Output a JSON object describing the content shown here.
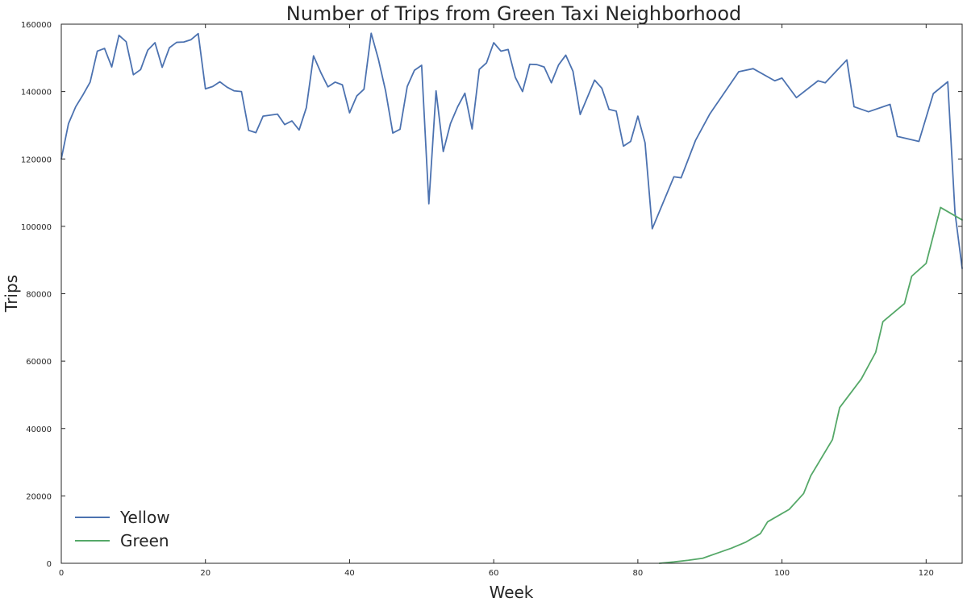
{
  "chart_data": {
    "type": "line",
    "title": "Number of Trips from Green Taxi Neighborhood",
    "xlabel": "Week",
    "ylabel": "Trips",
    "xlim": [
      0,
      125
    ],
    "ylim": [
      0,
      160000
    ],
    "xticks": [
      0,
      20,
      40,
      60,
      80,
      100,
      120
    ],
    "yticks": [
      0,
      20000,
      40000,
      60000,
      80000,
      100000,
      120000,
      140000,
      160000
    ],
    "grid": false,
    "legend_position": "lower-left",
    "series": [
      {
        "name": "Yellow",
        "color": "#4c72b0",
        "points": [
          [
            0,
            120000
          ],
          [
            1,
            130500
          ],
          [
            2,
            135500
          ],
          [
            3,
            139000
          ],
          [
            4,
            142800
          ],
          [
            5,
            152000
          ],
          [
            6,
            152800
          ],
          [
            7,
            147300
          ],
          [
            8,
            156700
          ],
          [
            9,
            154800
          ],
          [
            10,
            145000
          ],
          [
            11,
            146500
          ],
          [
            12,
            152300
          ],
          [
            13,
            154500
          ],
          [
            14,
            147200
          ],
          [
            15,
            153000
          ],
          [
            16,
            154600
          ],
          [
            17,
            154700
          ],
          [
            18,
            155400
          ],
          [
            19,
            157200
          ],
          [
            20,
            140800
          ],
          [
            21,
            141500
          ],
          [
            22,
            142900
          ],
          [
            23,
            141300
          ],
          [
            24,
            140200
          ],
          [
            25,
            140000
          ],
          [
            26,
            128500
          ],
          [
            27,
            127800
          ],
          [
            28,
            132700
          ],
          [
            29,
            133000
          ],
          [
            30,
            133300
          ],
          [
            31,
            130200
          ],
          [
            32,
            131300
          ],
          [
            33,
            128600
          ],
          [
            34,
            135200
          ],
          [
            35,
            150600
          ],
          [
            36,
            145700
          ],
          [
            37,
            141400
          ],
          [
            38,
            142800
          ],
          [
            39,
            142000
          ],
          [
            40,
            133700
          ],
          [
            41,
            138700
          ],
          [
            42,
            140700
          ],
          [
            43,
            157300
          ],
          [
            44,
            149600
          ],
          [
            45,
            140200
          ],
          [
            46,
            127700
          ],
          [
            47,
            128800
          ],
          [
            48,
            141500
          ],
          [
            49,
            146300
          ],
          [
            50,
            147800
          ],
          [
            51,
            106700
          ],
          [
            52,
            140200
          ],
          [
            53,
            122200
          ],
          [
            54,
            130500
          ],
          [
            55,
            135500
          ],
          [
            56,
            139500
          ],
          [
            57,
            128900
          ],
          [
            58,
            146600
          ],
          [
            59,
            148500
          ],
          [
            60,
            154500
          ],
          [
            61,
            152000
          ],
          [
            62,
            152500
          ],
          [
            63,
            144200
          ],
          [
            64,
            140000
          ],
          [
            65,
            148100
          ],
          [
            66,
            148000
          ],
          [
            67,
            147300
          ],
          [
            68,
            142600
          ],
          [
            69,
            147900
          ],
          [
            70,
            150800
          ],
          [
            71,
            146000
          ],
          [
            72,
            133200
          ],
          [
            74,
            143400
          ],
          [
            75,
            141000
          ],
          [
            76,
            134700
          ],
          [
            77,
            134200
          ],
          [
            78,
            123800
          ],
          [
            79,
            125200
          ],
          [
            80,
            132700
          ],
          [
            81,
            124800
          ],
          [
            82,
            99300
          ],
          [
            85,
            114700
          ],
          [
            86,
            114400
          ],
          [
            88,
            125500
          ],
          [
            90,
            133400
          ],
          [
            94,
            145900
          ],
          [
            96,
            146800
          ],
          [
            99,
            143200
          ],
          [
            100,
            144000
          ],
          [
            102,
            138200
          ],
          [
            105,
            143200
          ],
          [
            106,
            142600
          ],
          [
            109,
            149400
          ],
          [
            110,
            135500
          ],
          [
            112,
            134000
          ],
          [
            115,
            136200
          ],
          [
            116,
            126700
          ],
          [
            119,
            125200
          ],
          [
            121,
            139400
          ],
          [
            123,
            142900
          ],
          [
            124,
            104200
          ],
          [
            125,
            87500
          ]
        ]
      },
      {
        "name": "Green",
        "color": "#55a868",
        "points": [
          [
            83,
            0
          ],
          [
            85,
            400
          ],
          [
            87,
            900
          ],
          [
            89,
            1500
          ],
          [
            91,
            3000
          ],
          [
            93,
            4500
          ],
          [
            95,
            6300
          ],
          [
            97,
            8800
          ],
          [
            98,
            12300
          ],
          [
            101,
            16000
          ],
          [
            103,
            20700
          ],
          [
            104,
            26000
          ],
          [
            107,
            36700
          ],
          [
            108,
            46200
          ],
          [
            111,
            54700
          ],
          [
            113,
            62600
          ],
          [
            114,
            71700
          ],
          [
            117,
            77100
          ],
          [
            118,
            85200
          ],
          [
            120,
            89000
          ],
          [
            122,
            105600
          ],
          [
            125,
            101900
          ]
        ]
      }
    ]
  }
}
